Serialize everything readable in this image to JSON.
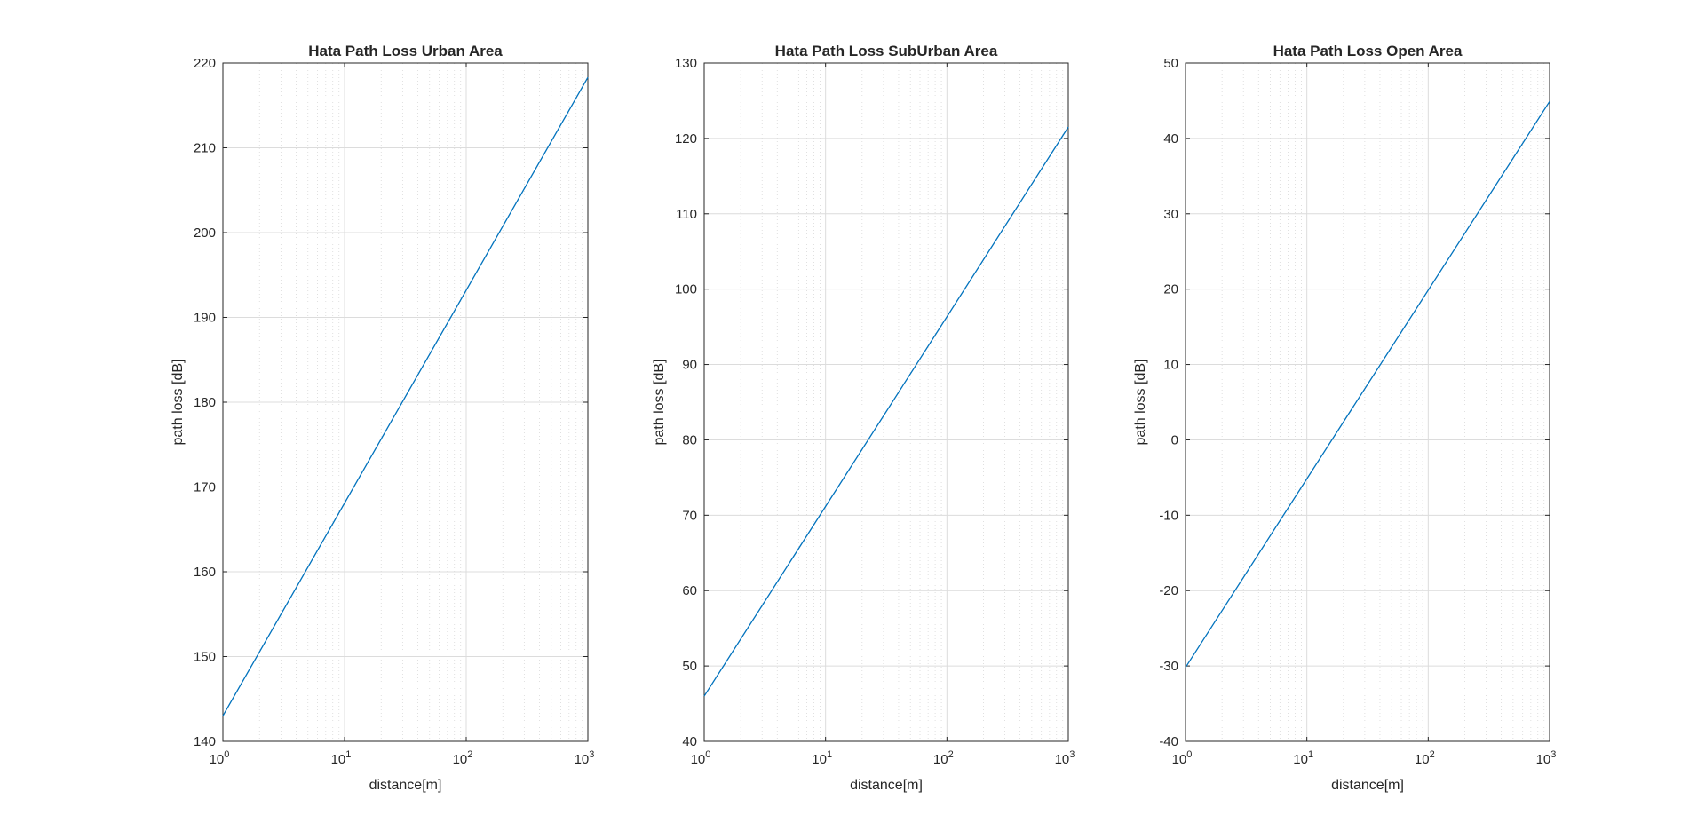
{
  "chart_data": [
    {
      "type": "line",
      "title": "Hata Path Loss Urban Area",
      "xlabel": "distance[m]",
      "ylabel": "path loss [dB]",
      "xscale": "log",
      "xlim": [
        1,
        1000
      ],
      "ylim": [
        140,
        220
      ],
      "xticks": [
        {
          "base": "10",
          "exp": "0"
        },
        {
          "base": "10",
          "exp": "1"
        },
        {
          "base": "10",
          "exp": "2"
        },
        {
          "base": "10",
          "exp": "3"
        }
      ],
      "yticks": [
        "140",
        "150",
        "160",
        "170",
        "180",
        "190",
        "200",
        "210",
        "220"
      ],
      "grid": true,
      "color": "#0072BD",
      "series": [
        {
          "x": [
            1,
            1000
          ],
          "y": [
            143.0,
            218.3
          ]
        }
      ]
    },
    {
      "type": "line",
      "title": "Hata Path Loss SubUrban Area",
      "xlabel": "distance[m]",
      "ylabel": "path loss [dB]",
      "xscale": "log",
      "xlim": [
        1,
        1000
      ],
      "ylim": [
        40,
        130
      ],
      "xticks": [
        {
          "base": "10",
          "exp": "0"
        },
        {
          "base": "10",
          "exp": "1"
        },
        {
          "base": "10",
          "exp": "2"
        },
        {
          "base": "10",
          "exp": "3"
        }
      ],
      "yticks": [
        "40",
        "50",
        "60",
        "70",
        "80",
        "90",
        "100",
        "110",
        "120",
        "130"
      ],
      "grid": true,
      "color": "#0072BD",
      "series": [
        {
          "x": [
            1,
            1000
          ],
          "y": [
            46.0,
            121.5
          ]
        }
      ]
    },
    {
      "type": "line",
      "title": "Hata Path Loss Open Area",
      "xlabel": "distance[m]",
      "ylabel": "path loss [dB]",
      "xscale": "log",
      "xlim": [
        1,
        1000
      ],
      "ylim": [
        -40,
        50
      ],
      "xticks": [
        {
          "base": "10",
          "exp": "0"
        },
        {
          "base": "10",
          "exp": "1"
        },
        {
          "base": "10",
          "exp": "2"
        },
        {
          "base": "10",
          "exp": "3"
        }
      ],
      "yticks": [
        "-40",
        "-30",
        "-20",
        "-10",
        "0",
        "10",
        "20",
        "30",
        "40",
        "50"
      ],
      "grid": true,
      "color": "#0072BD",
      "series": [
        {
          "x": [
            1,
            1000
          ],
          "y": [
            -30.2,
            44.9
          ]
        }
      ]
    }
  ]
}
